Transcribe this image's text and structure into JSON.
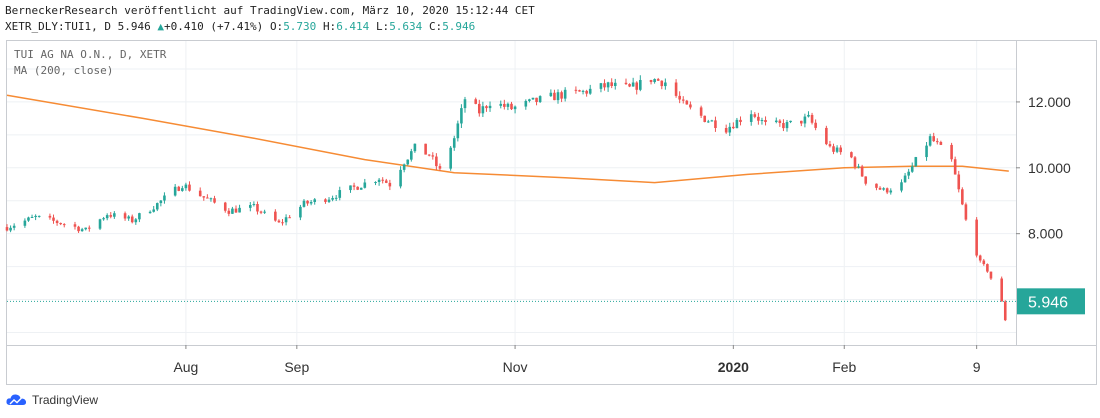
{
  "header": {
    "published_line": "BerneckerResearch veröffentlicht auf TradingView.com, März 10, 2020 15:12:44 CET",
    "symbol_interval": "XETR_DLY:TUI1, D",
    "last_value": "5.946",
    "change_arrow": "▲",
    "change": "+0.410 (+7.41%)",
    "o_label": "O:",
    "o_value": "5.730",
    "h_label": "H:",
    "h_value": "6.414",
    "l_label": "L:",
    "l_value": "5.634",
    "c_label": "C:",
    "c_value": "5.946"
  },
  "legend": {
    "instrument": "TUI AG NA O.N., D, XETR",
    "indicator": "MA (200, close)"
  },
  "brand": {
    "name": "TradingView"
  },
  "colors": {
    "up": "#26a69a",
    "down": "#ef5350",
    "ma": "#f68b34",
    "grid": "#eef1f4",
    "price_line": "#26a69a"
  },
  "chart_data": {
    "type": "candlestick",
    "title": "TUI AG NA O.N., D, XETR",
    "x_ticks": [
      {
        "label": "Aug",
        "date": "2019-08-01",
        "bold": false
      },
      {
        "label": "Sep",
        "date": "2019-09-01",
        "bold": false
      },
      {
        "label": "Nov",
        "date": "2019-11-01",
        "bold": false
      },
      {
        "label": "2020",
        "date": "2020-01-01",
        "bold": true
      },
      {
        "label": "Feb",
        "date": "2020-02-01",
        "bold": false
      },
      {
        "label": "9",
        "date": "2020-03-09",
        "bold": false
      }
    ],
    "x_range": [
      "2019-06-12",
      "2020-03-20"
    ],
    "y_ticks": [
      {
        "value": 12,
        "label": "12.000"
      },
      {
        "value": 10,
        "label": "10.000"
      },
      {
        "value": 8,
        "label": "8.000"
      }
    ],
    "ylim": [
      4.62,
      13.85
    ],
    "last_price": {
      "value": 5.946,
      "label": "5.946"
    },
    "series": [
      {
        "name": "TUI AG NA O.N.",
        "kind": "close",
        "points": [
          [
            "2019-06-12",
            8.2
          ],
          [
            "2019-06-20",
            8.5
          ],
          [
            "2019-06-28",
            8.3
          ],
          [
            "2019-07-04",
            8.1
          ],
          [
            "2019-07-10",
            8.6
          ],
          [
            "2019-07-17",
            8.4
          ],
          [
            "2019-07-24",
            8.9
          ],
          [
            "2019-07-31",
            9.5
          ],
          [
            "2019-08-06",
            9.1
          ],
          [
            "2019-08-13",
            8.7
          ],
          [
            "2019-08-20",
            8.8
          ],
          [
            "2019-08-27",
            8.3
          ],
          [
            "2019-09-03",
            8.9
          ],
          [
            "2019-09-10",
            9.1
          ],
          [
            "2019-09-17",
            9.4
          ],
          [
            "2019-09-24",
            9.7
          ],
          [
            "2019-09-27",
            9.5
          ],
          [
            "2019-10-01",
            10.2
          ],
          [
            "2019-10-04",
            10.6
          ],
          [
            "2019-10-08",
            10.4
          ],
          [
            "2019-10-11",
            9.9
          ],
          [
            "2019-10-15",
            10.9
          ],
          [
            "2019-10-18",
            12.1
          ],
          [
            "2019-10-22",
            11.7
          ],
          [
            "2019-10-25",
            12.0
          ],
          [
            "2019-10-31",
            11.8
          ],
          [
            "2019-11-06",
            12.0
          ],
          [
            "2019-11-13",
            12.2
          ],
          [
            "2019-11-20",
            12.3
          ],
          [
            "2019-11-27",
            12.5
          ],
          [
            "2019-12-03",
            12.4
          ],
          [
            "2019-12-09",
            12.7
          ],
          [
            "2019-12-13",
            12.6
          ],
          [
            "2019-12-18",
            11.9
          ],
          [
            "2019-12-24",
            11.5
          ],
          [
            "2019-12-30",
            11.2
          ],
          [
            "2020-01-06",
            11.7
          ],
          [
            "2020-01-10",
            11.3
          ],
          [
            "2020-01-16",
            11.3
          ],
          [
            "2020-01-22",
            11.5
          ],
          [
            "2020-01-28",
            10.6
          ],
          [
            "2020-02-03",
            10.3
          ],
          [
            "2020-02-07",
            9.6
          ],
          [
            "2020-02-12",
            9.3
          ],
          [
            "2020-02-17",
            9.5
          ],
          [
            "2020-02-21",
            10.2
          ],
          [
            "2020-02-25",
            10.9
          ],
          [
            "2020-02-27",
            10.7
          ],
          [
            "2020-03-02",
            10.2
          ],
          [
            "2020-03-04",
            9.3
          ],
          [
            "2020-03-06",
            8.4
          ],
          [
            "2020-03-10",
            7.1
          ],
          [
            "2020-03-12",
            6.9
          ],
          [
            "2020-03-16",
            5.9
          ],
          [
            "2020-03-17",
            5.4
          ],
          [
            "2020-03-18",
            5.9
          ]
        ]
      },
      {
        "name": "MA (200, close)",
        "kind": "line",
        "points": [
          [
            "2019-06-12",
            12.2
          ],
          [
            "2019-07-20",
            11.5
          ],
          [
            "2019-08-20",
            10.9
          ],
          [
            "2019-09-20",
            10.25
          ],
          [
            "2019-10-15",
            9.85
          ],
          [
            "2019-11-15",
            9.7
          ],
          [
            "2019-12-10",
            9.55
          ],
          [
            "2020-01-05",
            9.8
          ],
          [
            "2020-02-01",
            10.0
          ],
          [
            "2020-02-20",
            10.05
          ],
          [
            "2020-03-05",
            10.05
          ],
          [
            "2020-03-18",
            9.9
          ]
        ]
      }
    ],
    "grid": true
  }
}
